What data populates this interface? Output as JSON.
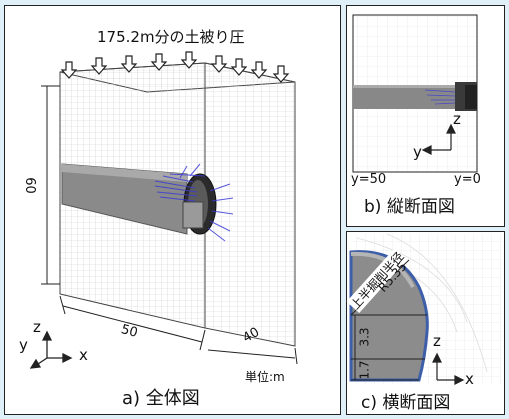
{
  "panel_a": {
    "load_label": "175.2m分の土被り圧",
    "dim_height": "60",
    "dim_width": "50",
    "dim_depth": "40",
    "axis_z": "z",
    "axis_y": "y",
    "axis_x": "x",
    "unit": "単位:m",
    "caption": "a) 全体図"
  },
  "panel_b": {
    "axis_z": "z",
    "axis_y": "y",
    "y_left": "y=50",
    "y_right": "y=0",
    "caption": "b) 縦断面図"
  },
  "panel_c": {
    "radius_label_1": "上半掘削半径",
    "radius_label_2": "R5.35",
    "dim_upper": "3.3",
    "dim_lower": "1.7",
    "axis_z": "z",
    "axis_x": "x",
    "caption": "c) 横断面図"
  },
  "colors": {
    "background": "#dff0f8",
    "tunnel": "#808080",
    "arrows": "#3b3bd6"
  }
}
